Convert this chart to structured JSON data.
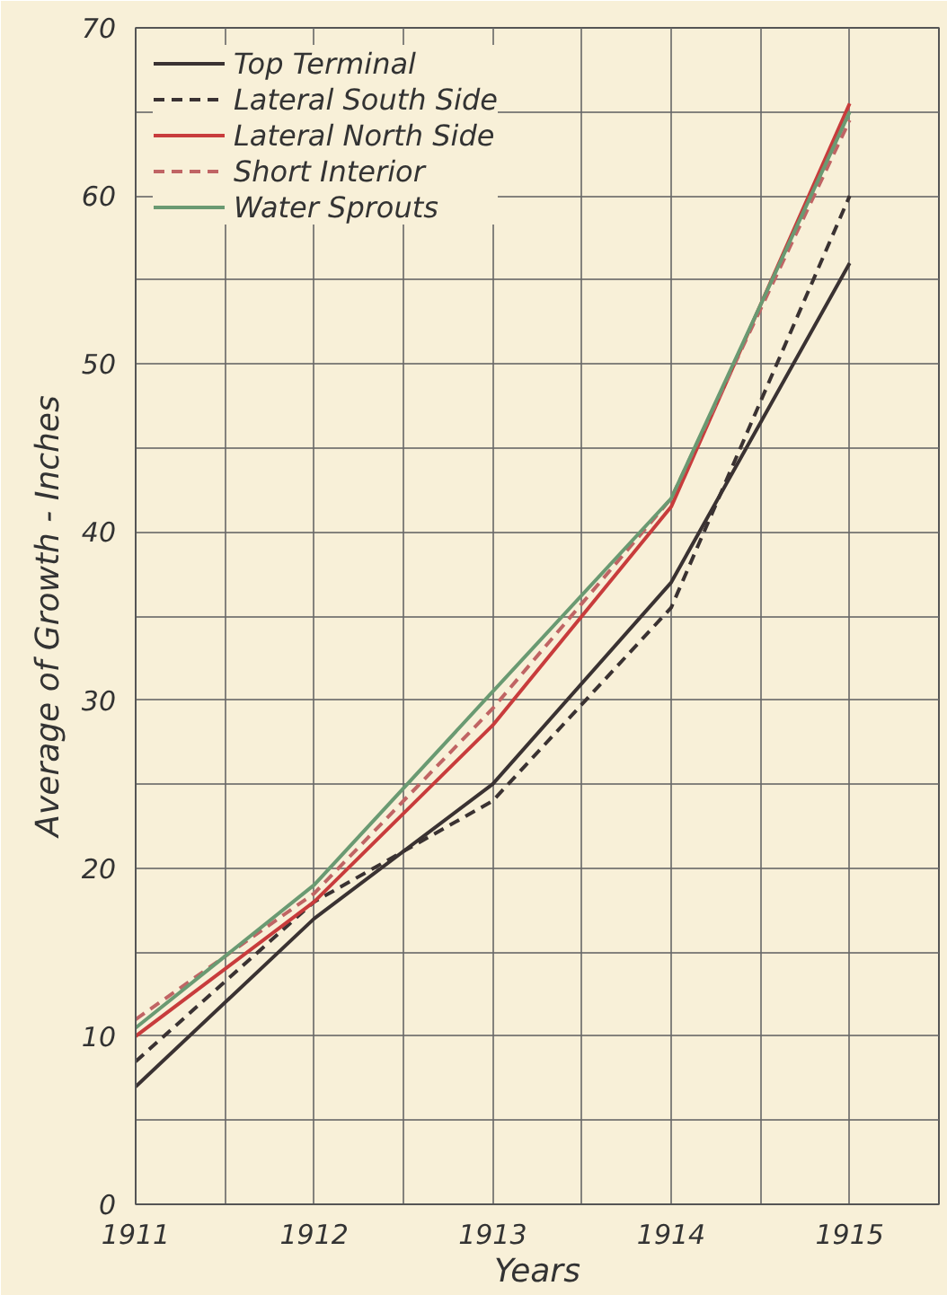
{
  "chart_data": {
    "type": "line",
    "xlabel": "Years",
    "ylabel": "Average of Growth - Inches",
    "x": [
      1911,
      1912,
      1913,
      1914,
      1915
    ],
    "series": [
      {
        "name": "Top Terminal",
        "color": "#3a3232",
        "line_style": "solid",
        "values": [
          7,
          17,
          25,
          37,
          56
        ]
      },
      {
        "name": "Lateral South Side",
        "color": "#3a3232",
        "line_style": "dashed",
        "values": [
          8.5,
          18,
          24,
          35.5,
          60
        ]
      },
      {
        "name": "Lateral North Side",
        "color": "#c83c3c",
        "line_style": "solid",
        "values": [
          10,
          18,
          28.5,
          41.5,
          65.5
        ]
      },
      {
        "name": "Short Interior",
        "color": "#c06464",
        "line_style": "dashed",
        "values": [
          11,
          18.5,
          29.5,
          42,
          64.5
        ]
      },
      {
        "name": "Water Sprouts",
        "color": "#6a9a72",
        "line_style": "solid",
        "values": [
          10.5,
          19,
          30.5,
          42,
          65
        ]
      }
    ],
    "xlim": [
      1911,
      1915.5
    ],
    "ylim": [
      0,
      70
    ],
    "xticks": [
      1911,
      {
        "value": 1911.5,
        "label": null
      },
      1912,
      {
        "value": 1912.5,
        "label": null
      },
      1913,
      {
        "value": 1913.5,
        "label": null
      },
      1914,
      {
        "value": 1914.5,
        "label": null
      },
      1915
    ],
    "yticks": [
      0,
      {
        "value": 5,
        "label": null
      },
      10,
      {
        "value": 15,
        "label": null
      },
      20,
      {
        "value": 25,
        "label": null
      },
      30,
      {
        "value": 35,
        "label": null
      },
      40,
      {
        "value": 45,
        "label": null
      },
      50,
      {
        "value": 55,
        "label": null
      },
      60,
      {
        "value": 65,
        "label": null
      },
      70
    ],
    "grid": true,
    "legend": "top left",
    "marker": "none"
  }
}
